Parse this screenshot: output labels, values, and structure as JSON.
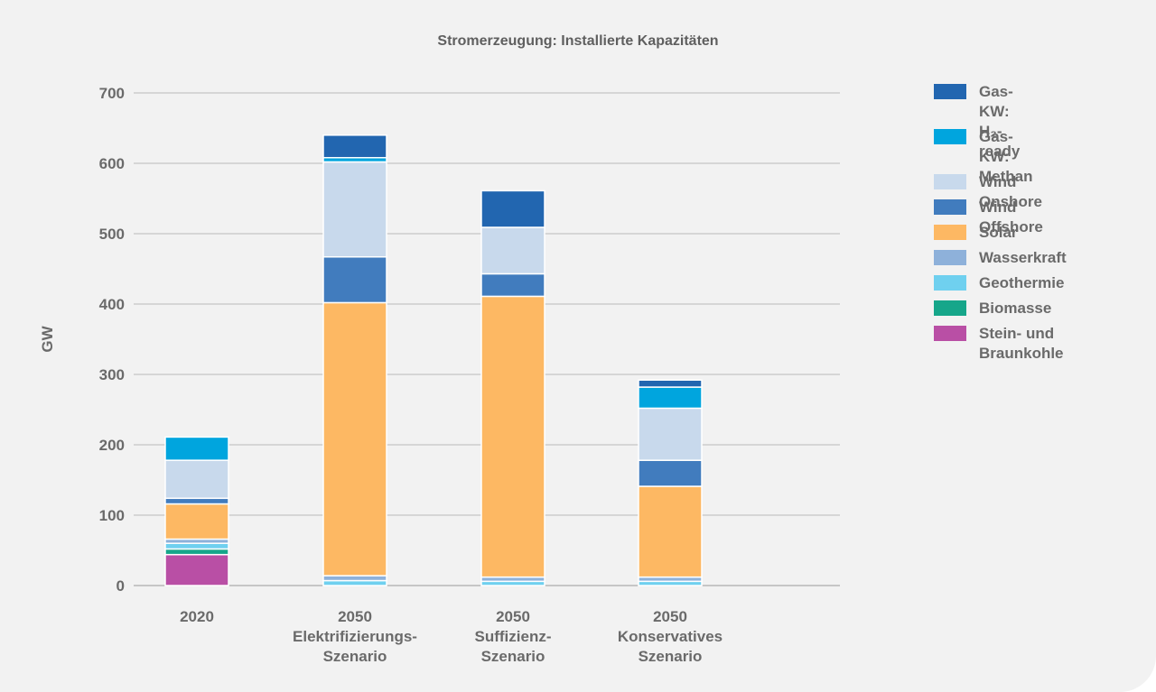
{
  "chart_data": {
    "type": "bar",
    "stacked": true,
    "title": "Stromerzeugung: Installierte Kapazitäten",
    "xlabel": "",
    "ylabel": "GW",
    "ylim": [
      0,
      700
    ],
    "yticks": [
      0,
      100,
      200,
      300,
      400,
      500,
      600,
      700
    ],
    "grid": true,
    "legend_position": "right",
    "categories": [
      "2020",
      "2050\nElektrifizierungs-\nSzenario",
      "2050\nSuffizienz-\nSzenario",
      "2050\nKonservatives\nSzenario"
    ],
    "series": [
      {
        "name": "Stein- und\nBraunkohle",
        "color": "#b94fa5",
        "values": [
          44,
          0,
          0,
          0
        ]
      },
      {
        "name": "Biomasse",
        "color": "#16a68a",
        "values": [
          8,
          0,
          0,
          0
        ]
      },
      {
        "name": "Geothermie",
        "color": "#6fd0ef",
        "values": [
          8,
          7,
          6,
          6
        ]
      },
      {
        "name": "Wasserkraft",
        "color": "#8eb1da",
        "values": [
          6,
          7,
          6,
          6
        ]
      },
      {
        "name": "Solar",
        "color": "#fdb863",
        "values": [
          50,
          388,
          399,
          129
        ]
      },
      {
        "name": "Wind Offshore",
        "color": "#417cbe",
        "values": [
          8,
          65,
          32,
          37
        ]
      },
      {
        "name": "Wind Onshore",
        "color": "#c8d9ec",
        "values": [
          54,
          135,
          66,
          74
        ]
      },
      {
        "name": "Gas-KW:\nMethan",
        "color": "#00a5de",
        "values": [
          33,
          6,
          0,
          30
        ]
      },
      {
        "name": "Gas-KW:\nH₂-ready",
        "color": "#2266b0",
        "values": [
          0,
          32,
          52,
          10
        ]
      }
    ]
  }
}
